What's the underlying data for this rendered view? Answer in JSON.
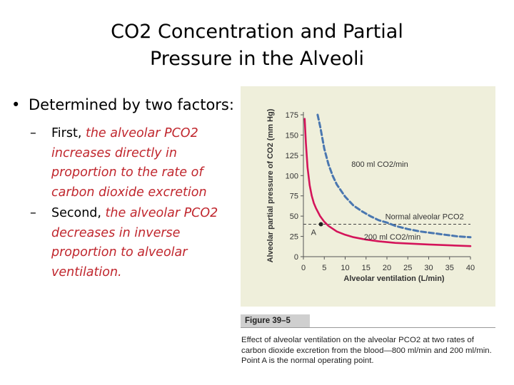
{
  "slide": {
    "title_line1": "CO2 Concentration and Partial",
    "title_line2": "Pressure in the Alveoli",
    "bullet": "Determined by two factors:",
    "sub1_prefix": "First,",
    "sub1_text": "the alveolar PCO2 increases directly in proportion to the rate of carbon dioxide excretion",
    "sub2_prefix": "Second,",
    "sub2_text": "the alveolar PCO2 decreases in inverse proportion to alveolar ventilation."
  },
  "figure": {
    "label": "Figure 39–5",
    "caption": "Effect of alveolar ventilation on the alveolar PCO2 at two rates of carbon dioxide excretion from the blood—800 ml/min and 200 ml/min. Point A is the normal operating point."
  },
  "chart_data": {
    "type": "line",
    "xlabel": "Alveolar ventilation (L/min)",
    "ylabel": "Alveolar partial pressure of CO2 (mm Hg)",
    "xlim": [
      0,
      40
    ],
    "ylim": [
      0,
      175
    ],
    "xticks": [
      0,
      5,
      10,
      15,
      20,
      25,
      30,
      35,
      40
    ],
    "yticks": [
      0,
      25,
      50,
      75,
      100,
      125,
      150,
      175
    ],
    "series": [
      {
        "name": "800 ml CO2/min",
        "color": "#4a77b0",
        "style": "dashed",
        "x": [
          3.4,
          4,
          5,
          6,
          7,
          8,
          10,
          12,
          14,
          16,
          18,
          20,
          22,
          25,
          28,
          31,
          34,
          37,
          40
        ],
        "y": [
          175,
          161,
          133,
          114,
          100,
          89,
          74,
          63,
          56,
          50,
          45,
          42,
          38,
          34,
          31,
          29,
          27,
          25,
          24
        ]
      },
      {
        "name": "200 ml CO2/min",
        "color": "#d4145a",
        "style": "solid",
        "x": [
          0.3,
          0.6,
          1,
          1.5,
          2,
          2.5,
          3,
          4,
          5,
          6,
          8,
          10,
          12,
          15,
          18,
          22,
          26,
          30,
          35,
          40
        ],
        "y": [
          170,
          140,
          110,
          88,
          75,
          66,
          60,
          50,
          43,
          38,
          31,
          27,
          24,
          21,
          19,
          17,
          16,
          15,
          14,
          13
        ]
      }
    ],
    "reference_line": {
      "label": "Normal alveolar PCO2",
      "y": 40,
      "style": "dashed"
    },
    "point": {
      "label": "A",
      "x": 4.2,
      "y": 40
    }
  }
}
